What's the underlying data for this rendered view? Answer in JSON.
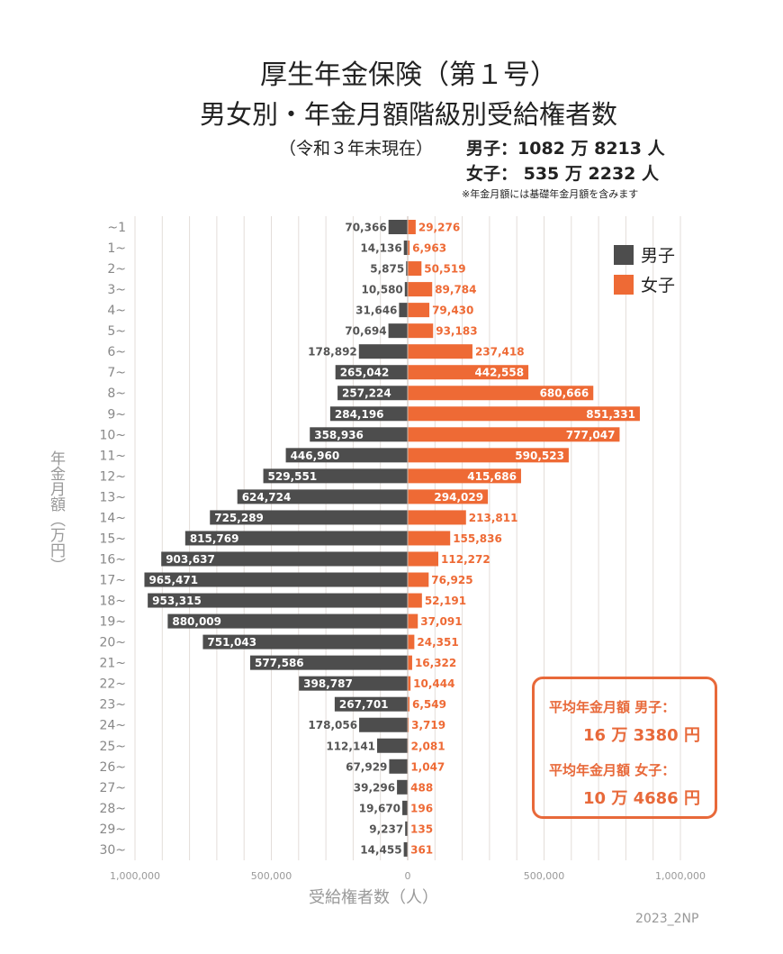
{
  "header": {
    "title1": "厚生年金保険（第１号）",
    "title2": "男女別・年金月額階級別受給権者数",
    "subtitle": "（令和３年末現在）",
    "male_total": "男子：1082 万 8213 人",
    "female_total": "女子：  535 万 2232 人",
    "note": "※年金月額には基礎年金月額を含みます"
  },
  "average_box": {
    "male_label": "平均年金月額  男子：",
    "male_value": "16 万 3380 円",
    "female_label": "平均年金月額  女子：",
    "female_value": "10 万 4686 円"
  },
  "credit": "2023_2NP",
  "chart_data": {
    "type": "bar",
    "orientation": "horizontal-population-pyramid",
    "xlabel": "受給権者数（人）",
    "ylabel": "年金月額（万円）",
    "xlim": [
      -1000000,
      1000000
    ],
    "xticks": [
      "1,000,000",
      "500,000",
      "0",
      "500,000",
      "1,000,000"
    ],
    "xtick_values": [
      -1000000,
      -500000,
      0,
      500000,
      1000000
    ],
    "grid": true,
    "legend": "top-right",
    "categories": [
      "~1",
      "1~",
      "2~",
      "3~",
      "4~",
      "5~",
      "6~",
      "7~",
      "8~",
      "9~",
      "10~",
      "11~",
      "12~",
      "13~",
      "14~",
      "15~",
      "16~",
      "17~",
      "18~",
      "19~",
      "20~",
      "21~",
      "22~",
      "23~",
      "24~",
      "25~",
      "26~",
      "27~",
      "28~",
      "29~",
      "30~"
    ],
    "series": [
      {
        "name": "男子",
        "color": "#4d4d4d",
        "side": "left",
        "values": [
          70366,
          14136,
          5875,
          10580,
          31646,
          70694,
          178892,
          265042,
          257224,
          284196,
          358936,
          446960,
          529551,
          624724,
          725289,
          815769,
          903637,
          965471,
          953315,
          880009,
          751043,
          577586,
          398787,
          267701,
          178056,
          112141,
          67929,
          39296,
          19670,
          9237,
          14455
        ]
      },
      {
        "name": "女子",
        "color": "#ee6a35",
        "side": "right",
        "values": [
          29276,
          6963,
          50519,
          89784,
          79430,
          93183,
          237418,
          442558,
          680666,
          851331,
          777047,
          590523,
          415686,
          294029,
          213811,
          155836,
          112272,
          76925,
          52191,
          37091,
          24351,
          16322,
          10444,
          6549,
          3719,
          2081,
          1047,
          488,
          196,
          135,
          361
        ]
      }
    ]
  }
}
